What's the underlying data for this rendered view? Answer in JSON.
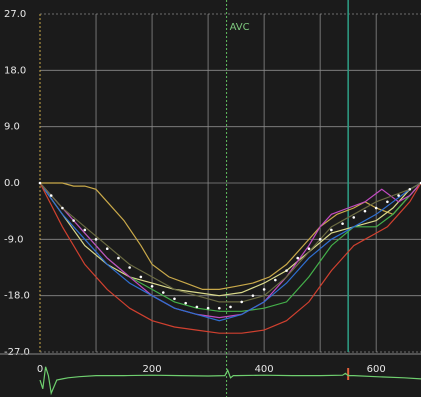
{
  "chart_data": {
    "type": "line",
    "title": "",
    "xlabel": "",
    "ylabel": "",
    "xlim": [
      0,
      680
    ],
    "ylim": [
      -27,
      27
    ],
    "yticks": [
      "27.0",
      "18.0",
      "9.0",
      "0.0",
      "-9.0",
      "-18.0",
      "-27.0"
    ],
    "ytick_values": [
      27,
      18,
      9,
      0,
      -9,
      -18,
      -27
    ],
    "xticks": [
      "0",
      "200",
      "400",
      "600"
    ],
    "xtick_values": [
      0,
      200,
      400,
      600
    ],
    "grid": true,
    "annotation": {
      "text": "AVC",
      "x": 333,
      "color": "#7ec87e"
    },
    "marker_line_x": 550,
    "colors": {
      "background": "#1b1b1b",
      "grid": "#8a8a8a",
      "avc_line": "#5fbf5f",
      "marker_line": "#2f9f86",
      "avg_dots": "#ffffff"
    },
    "series": [
      {
        "color": "#c9a94a",
        "x": [
          0,
          40,
          60,
          80,
          100,
          120,
          150,
          180,
          200,
          230,
          260,
          290,
          320,
          350,
          380,
          410,
          440,
          470,
          500,
          530,
          560,
          580,
          600,
          630,
          660,
          680
        ],
        "y": [
          0,
          0,
          -0.5,
          -0.5,
          -1,
          -3,
          -6,
          -10,
          -13,
          -15,
          -16,
          -17,
          -17,
          -16.5,
          -16,
          -15,
          -13,
          -10,
          -7,
          -5,
          -4,
          -3,
          -4,
          -5,
          -2,
          0
        ]
      },
      {
        "color": "#d9d98a",
        "x": [
          0,
          40,
          80,
          120,
          160,
          200,
          240,
          280,
          320,
          360,
          400,
          440,
          480,
          520,
          560,
          600,
          630,
          660,
          680
        ],
        "y": [
          0,
          -5,
          -10,
          -13,
          -15,
          -16,
          -17,
          -17.5,
          -18,
          -17.5,
          -16,
          -14,
          -11,
          -8,
          -7,
          -6,
          -4,
          -1,
          0
        ]
      },
      {
        "color": "#44b04a",
        "x": [
          0,
          40,
          80,
          120,
          160,
          200,
          240,
          280,
          320,
          360,
          400,
          440,
          480,
          520,
          560,
          600,
          630,
          660,
          680
        ],
        "y": [
          0,
          -4,
          -8,
          -12,
          -15,
          -17,
          -19,
          -20,
          -20.5,
          -20.5,
          -20,
          -19,
          -15,
          -10,
          -7,
          -7,
          -5,
          -2,
          0
        ]
      },
      {
        "color": "#c24ac2",
        "x": [
          0,
          40,
          80,
          120,
          160,
          200,
          240,
          280,
          320,
          360,
          400,
          440,
          480,
          500,
          520,
          550,
          580,
          610,
          640,
          660,
          680
        ],
        "y": [
          0,
          -4,
          -8,
          -12,
          -15,
          -18,
          -20,
          -21,
          -21.5,
          -21,
          -19,
          -15,
          -10,
          -7,
          -5,
          -4,
          -3,
          -1,
          -3,
          -2,
          0
        ]
      },
      {
        "color": "#2f6fd0",
        "x": [
          0,
          40,
          80,
          120,
          160,
          200,
          240,
          280,
          320,
          360,
          400,
          440,
          480,
          520,
          560,
          600,
          630,
          660,
          680
        ],
        "y": [
          0,
          -5,
          -9,
          -13,
          -16,
          -18,
          -20,
          -21,
          -22,
          -21,
          -19,
          -16,
          -12,
          -9,
          -7,
          -5,
          -3,
          -1,
          0
        ]
      },
      {
        "color": "#d0402f",
        "x": [
          0,
          40,
          80,
          120,
          160,
          200,
          240,
          280,
          320,
          360,
          400,
          440,
          480,
          520,
          540,
          560,
          580,
          600,
          620,
          640,
          660,
          680
        ],
        "y": [
          0,
          -7,
          -13,
          -17,
          -20,
          -22,
          -23,
          -23.5,
          -24,
          -24,
          -23.5,
          -22,
          -19,
          -14,
          -12,
          -10,
          -9,
          -8,
          -7,
          -5,
          -3,
          0
        ]
      },
      {
        "color": "#6a6a42",
        "x": [
          0,
          40,
          80,
          120,
          160,
          200,
          240,
          280,
          320,
          360,
          400,
          440,
          480,
          520,
          560,
          600,
          630,
          660,
          680
        ],
        "y": [
          0,
          -4,
          -7,
          -10,
          -13,
          -15,
          -17,
          -18,
          -19,
          -19,
          -18,
          -15,
          -11,
          -7,
          -5,
          -3,
          -2,
          -1,
          0
        ]
      }
    ],
    "average": {
      "x": [
        0,
        20,
        40,
        60,
        80,
        100,
        120,
        140,
        160,
        180,
        200,
        220,
        240,
        260,
        280,
        300,
        320,
        340,
        360,
        380,
        400,
        420,
        440,
        460,
        480,
        500,
        520,
        540,
        560,
        580,
        600,
        620,
        640,
        660,
        680
      ],
      "y": [
        0,
        -2,
        -4,
        -6,
        -7.5,
        -9,
        -10.5,
        -12,
        -13.5,
        -15,
        -16.5,
        -17.5,
        -18.5,
        -19.2,
        -19.8,
        -20,
        -20,
        -19.8,
        -19,
        -18,
        -17,
        -15.5,
        -14,
        -12,
        -10.5,
        -9,
        -7.5,
        -6.5,
        -5.5,
        -4.5,
        -4,
        -3,
        -2,
        -1,
        0
      ]
    },
    "ecg": {
      "x": [
        0,
        5,
        10,
        15,
        20,
        25,
        30,
        40,
        50,
        70,
        100,
        150,
        200,
        250,
        300,
        330,
        335,
        340,
        345,
        350,
        400,
        450,
        500,
        540,
        545,
        550,
        560,
        600,
        650,
        680
      ],
      "y": [
        0,
        -0.4,
        0.6,
        0.2,
        -0.6,
        -0.3,
        0,
        0.05,
        0.1,
        0.15,
        0.2,
        0.2,
        0.22,
        0.2,
        0.18,
        0.2,
        0.45,
        0.1,
        0.2,
        0.2,
        0.22,
        0.2,
        0.2,
        0.22,
        0.3,
        0.2,
        0.2,
        0.15,
        0.1,
        0.05
      ]
    }
  }
}
